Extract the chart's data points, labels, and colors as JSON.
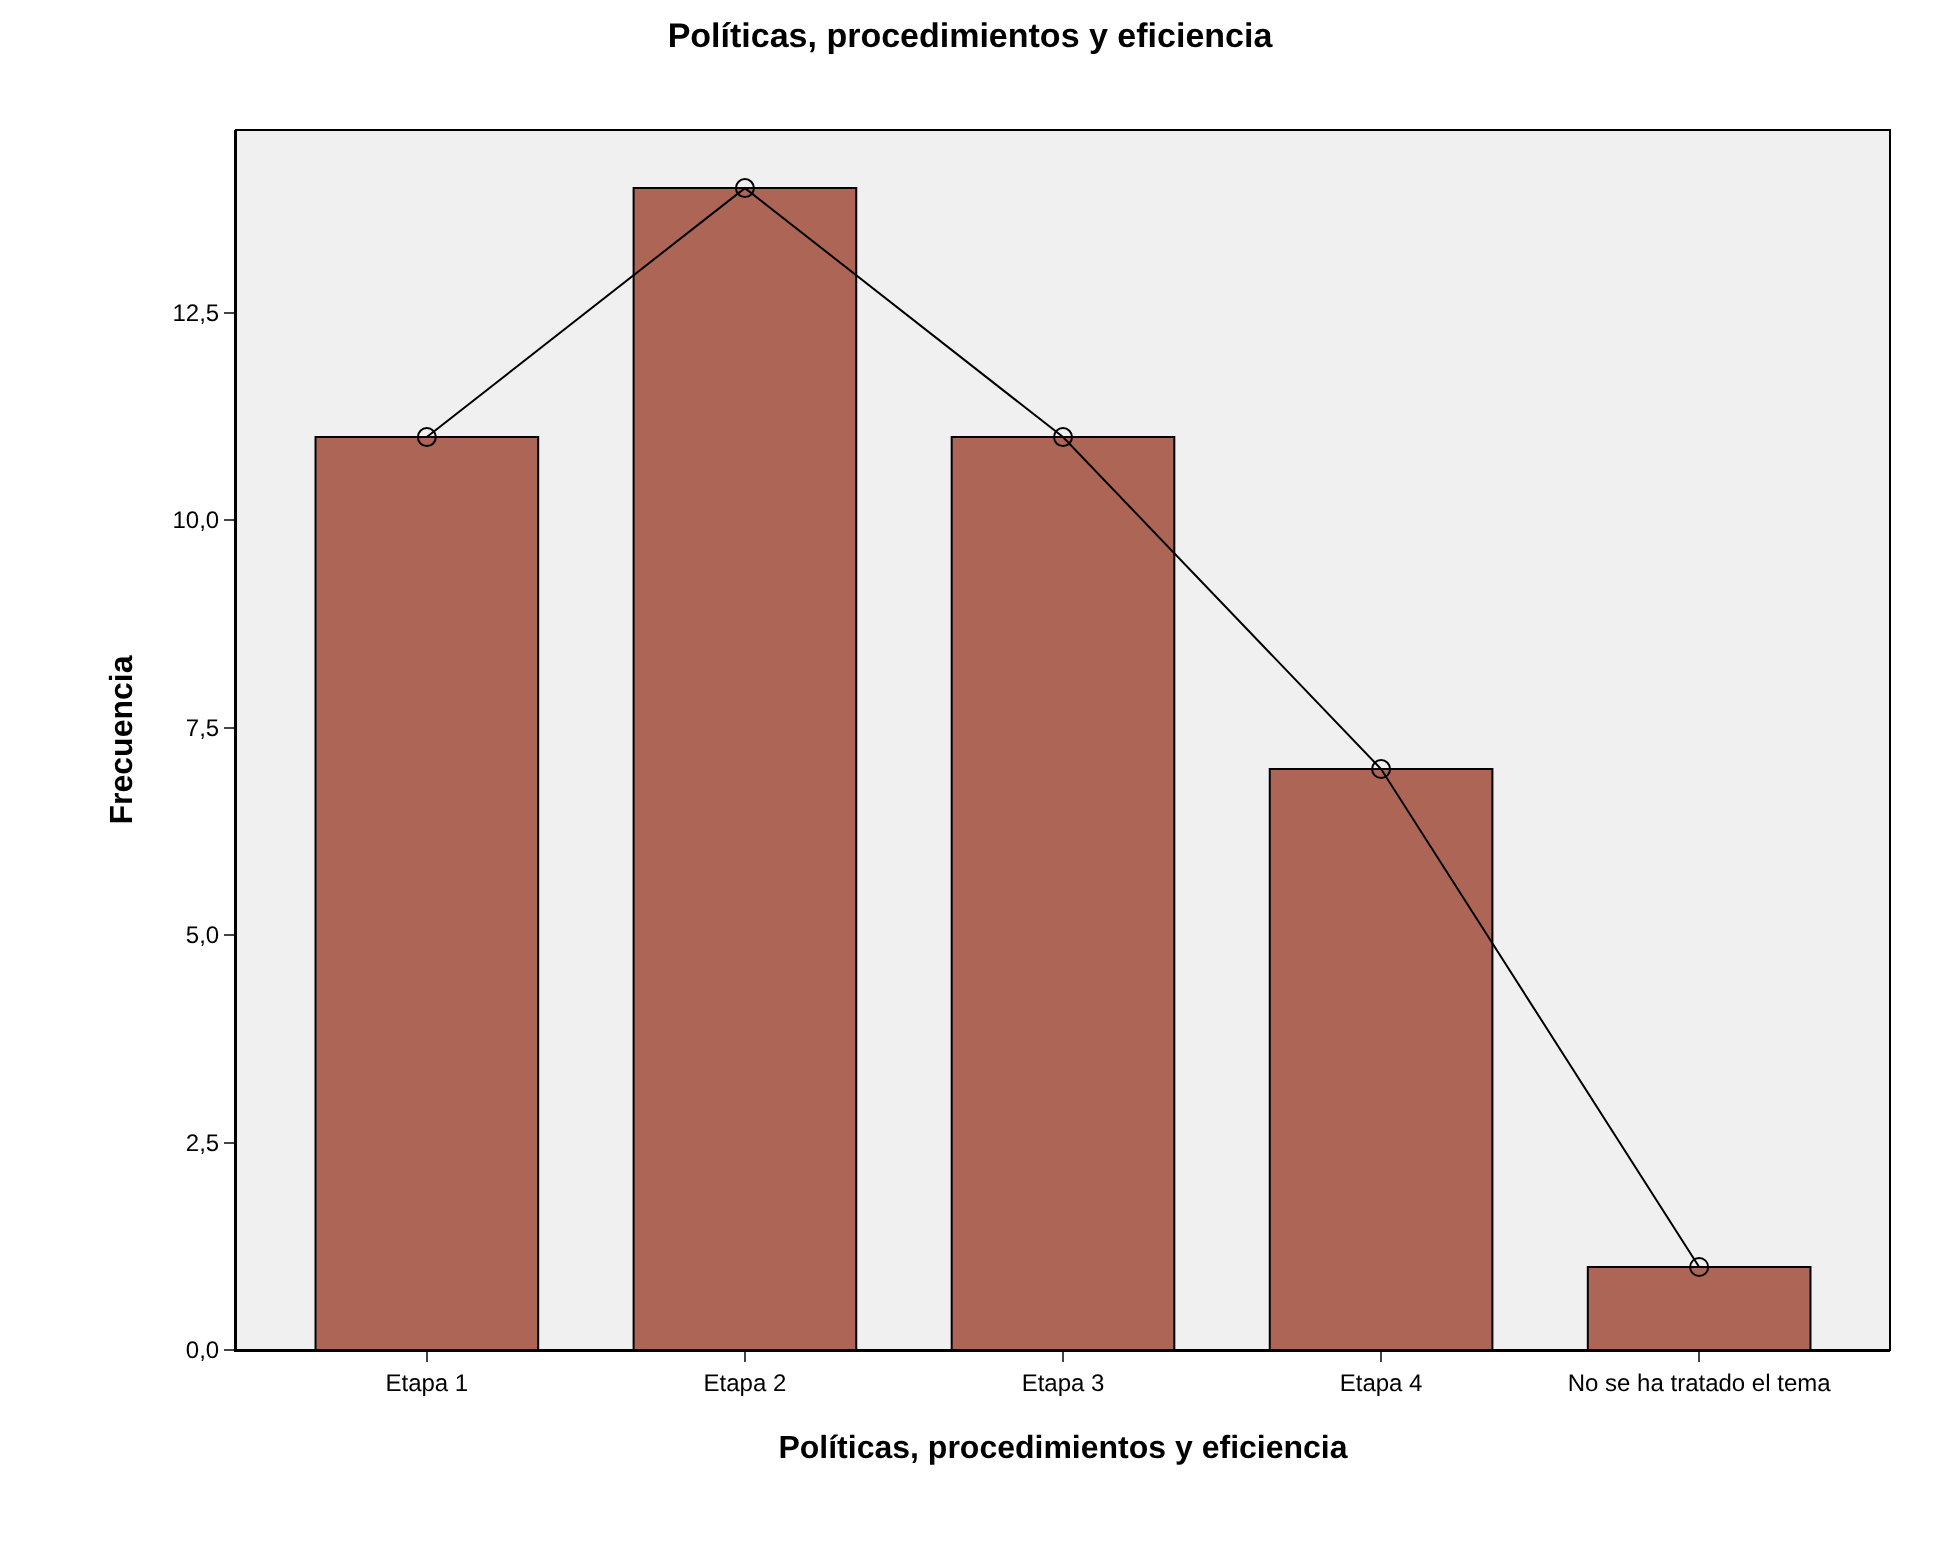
{
  "chart_data": {
    "type": "bar",
    "title": "Políticas, procedimientos y eficiencia",
    "xlabel": "Políticas, procedimientos y eficiencia",
    "ylabel": "Frecuencia",
    "categories": [
      "Etapa 1",
      "Etapa 2",
      "Etapa 3",
      "Etapa 4",
      "No se ha tratado el tema"
    ],
    "series": [
      {
        "color": "#ad6556",
        "values": [
          11,
          14,
          11,
          7,
          1
        ]
      },
      {
        "type": "line",
        "color": "#000000",
        "values": [
          11,
          14,
          11,
          7,
          1
        ]
      }
    ],
    "marker": "circle",
    "line_style": "solid",
    "grid": false,
    "ylim": [
      0,
      14.7
    ],
    "yticks": [
      {
        "value": 0,
        "label": "0,0"
      },
      {
        "value": 2.5,
        "label": "2,5"
      },
      {
        "value": 5,
        "label": "5,0"
      },
      {
        "value": 7.5,
        "label": "7,5"
      },
      {
        "value": 10,
        "label": "10,0"
      },
      {
        "value": 12.5,
        "label": "12,5"
      }
    ]
  }
}
